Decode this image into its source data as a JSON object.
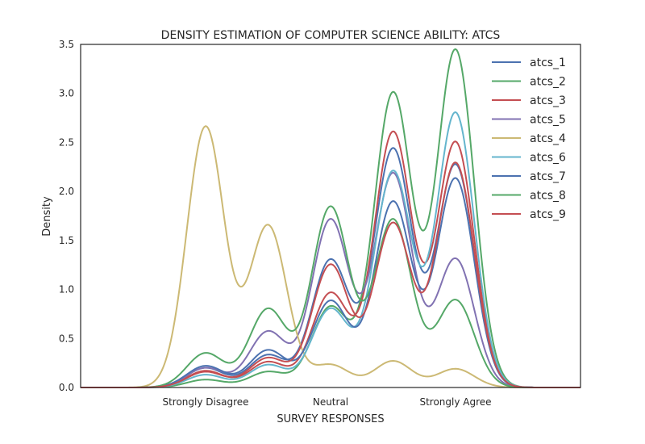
{
  "chart_data": {
    "type": "line",
    "title": "DENSITY ESTIMATION OF COMPUTER SCIENCE ABILITY: ATCS",
    "xlabel": "SURVEY RESPONSES",
    "ylabel": "Density",
    "xlim": [
      0,
      4
    ],
    "ylim": [
      0,
      3.5
    ],
    "x_ticks": [
      {
        "value": 1,
        "label": "Strongly Disagree"
      },
      {
        "value": 2,
        "label": "Neutral"
      },
      {
        "value": 3,
        "label": "Strongly Agree"
      }
    ],
    "y_ticks": [
      "0.0",
      "0.5",
      "1.0",
      "1.5",
      "2.0",
      "2.5",
      "3.0",
      "3.5"
    ],
    "grid": false,
    "legend_position": "top-right",
    "kde_sigma": 0.15,
    "peak_positions": [
      1,
      1.5,
      2,
      2.5,
      3
    ],
    "series": [
      {
        "name": "atcs_1",
        "color": "#4c72b0",
        "peaks": [
          0.2,
          0.33,
          1.3,
          2.43,
          2.27
        ]
      },
      {
        "name": "atcs_2",
        "color": "#55a868",
        "peaks": [
          0.08,
          0.16,
          0.82,
          3.0,
          3.44
        ]
      },
      {
        "name": "atcs_3",
        "color": "#c44e52",
        "peaks": [
          0.17,
          0.26,
          0.96,
          2.6,
          2.5
        ]
      },
      {
        "name": "atcs_5",
        "color": "#8172b2",
        "peaks": [
          0.2,
          0.57,
          1.71,
          2.18,
          1.31
        ]
      },
      {
        "name": "atcs_4",
        "color": "#ccb974",
        "peaks": [
          2.66,
          1.65,
          0.23,
          0.27,
          0.19
        ]
      },
      {
        "name": "atcs_6",
        "color": "#64b5cd",
        "peaks": [
          0.13,
          0.23,
          0.8,
          2.2,
          2.8
        ]
      },
      {
        "name": "atcs_7",
        "color": "#4c72b0",
        "peaks": [
          0.22,
          0.38,
          0.88,
          1.89,
          2.13
        ]
      },
      {
        "name": "atcs_8",
        "color": "#55a868",
        "peaks": [
          0.35,
          0.8,
          1.84,
          1.71,
          0.89
        ]
      },
      {
        "name": "atcs_9",
        "color": "#c44e52",
        "peaks": [
          0.16,
          0.3,
          1.25,
          1.67,
          2.29
        ]
      }
    ]
  }
}
